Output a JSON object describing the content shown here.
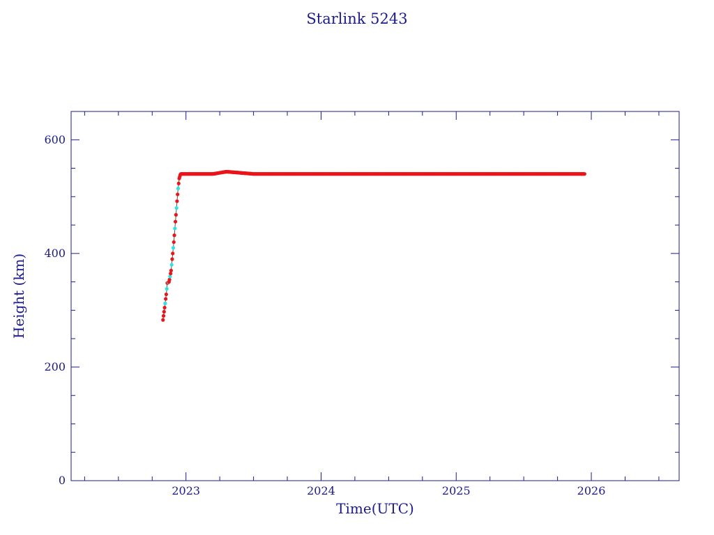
{
  "chart_data": {
    "type": "scatter",
    "title": "Starlink 5243",
    "xlabel": "Time(UTC)",
    "ylabel": "Height (km)",
    "xlim": [
      2022.15,
      2026.65
    ],
    "ylim": [
      0,
      650
    ],
    "x_ticks": [
      "2023",
      "2024",
      "2025",
      "2026"
    ],
    "y_ticks": [
      "0",
      "200",
      "400",
      "600"
    ],
    "grid": false,
    "colors": {
      "axis": "#1a1a8c",
      "points": "#e8151b",
      "line": "#555555",
      "highlight": "#33e0e0"
    },
    "series": [
      {
        "values": [
          [
            2022.83,
            283
          ],
          [
            2022.845,
            310
          ],
          [
            2022.855,
            330
          ],
          [
            2022.862,
            348
          ],
          [
            2022.875,
            350
          ],
          [
            2022.89,
            370
          ],
          [
            2022.9,
            395
          ],
          [
            2022.91,
            420
          ],
          [
            2022.92,
            450
          ],
          [
            2022.93,
            480
          ],
          [
            2022.94,
            510
          ],
          [
            2022.95,
            532
          ],
          [
            2022.96,
            540
          ],
          [
            2023.0,
            540
          ],
          [
            2023.2,
            540
          ],
          [
            2023.3,
            544
          ],
          [
            2023.5,
            540
          ],
          [
            2024.0,
            540
          ],
          [
            2024.5,
            540
          ],
          [
            2025.0,
            540
          ],
          [
            2025.5,
            540
          ],
          [
            2025.95,
            540
          ]
        ]
      }
    ]
  }
}
